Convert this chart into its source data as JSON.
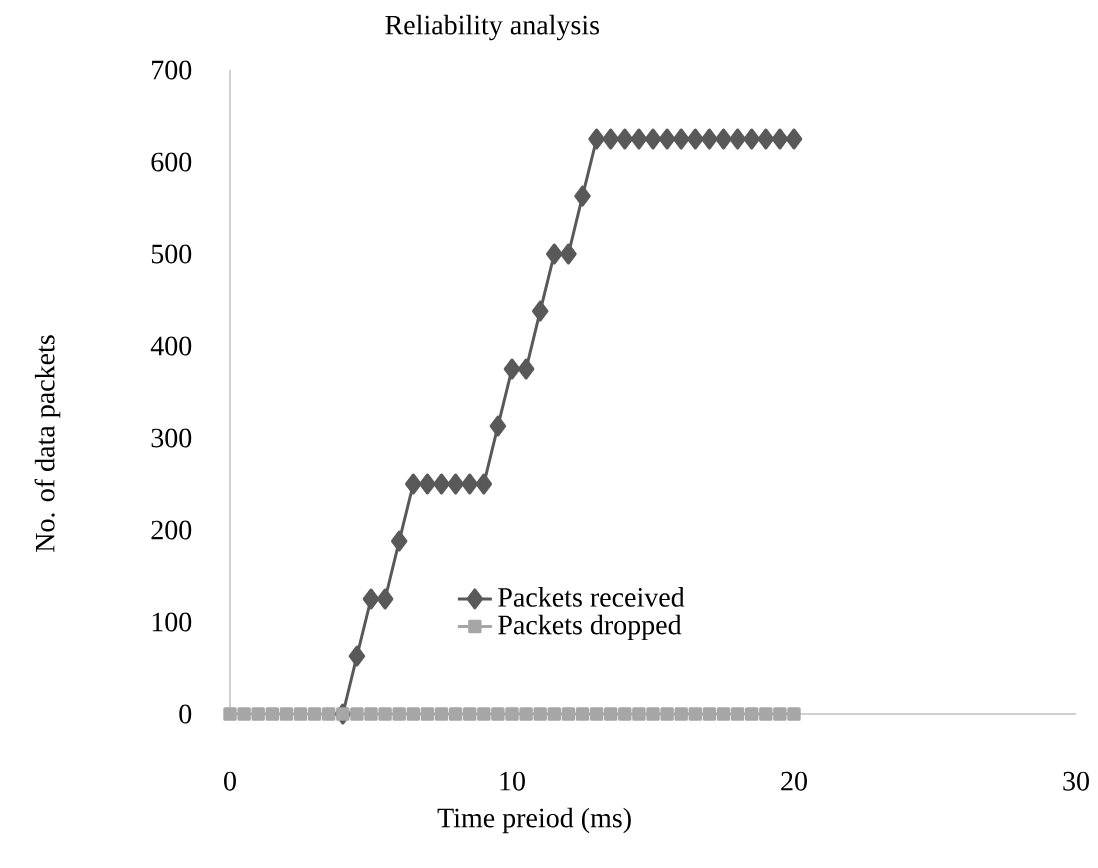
{
  "chart_data": {
    "type": "line",
    "title": "Reliability analysis",
    "xlabel": "Time preiod (ms)",
    "ylabel": "No. of data packets",
    "xlim": [
      0,
      30
    ],
    "xticks": [
      0,
      10,
      20,
      30
    ],
    "ylim": [
      0,
      700
    ],
    "yticks": [
      0,
      100,
      200,
      300,
      400,
      500,
      600,
      700
    ],
    "grid": false,
    "legend": "bottom",
    "series": [
      {
        "name": "Packets received",
        "color": "#595959",
        "marker": "diamond",
        "x": [
          4,
          4.5,
          5,
          5.5,
          6,
          6.5,
          7,
          7.5,
          8,
          8.5,
          9,
          9.5,
          10,
          10.5,
          11,
          11.5,
          12,
          12.5,
          13,
          13.5,
          14,
          14.5,
          15,
          15.5,
          16,
          16.5,
          17,
          17.5,
          18,
          18.5,
          19,
          19.5,
          20
        ],
        "values": [
          0,
          63,
          125,
          125,
          188,
          250,
          250,
          250,
          250,
          250,
          250,
          313,
          375,
          375,
          438,
          500,
          500,
          563,
          625,
          625,
          625,
          625,
          625,
          625,
          625,
          625,
          625,
          625,
          625,
          625,
          625,
          625,
          625
        ]
      },
      {
        "name": "Packets dropped",
        "color": "#a6a6a6",
        "marker": "square",
        "x": [
          0,
          0.5,
          1,
          1.5,
          2,
          2.5,
          3,
          3.5,
          4,
          4.5,
          5,
          5.5,
          6,
          6.5,
          7,
          7.5,
          8,
          8.5,
          9,
          9.5,
          10,
          10.5,
          11,
          11.5,
          12,
          12.5,
          13,
          13.5,
          14,
          14.5,
          15,
          15.5,
          16,
          16.5,
          17,
          17.5,
          18,
          18.5,
          19,
          19.5,
          20
        ],
        "values": [
          0,
          0,
          0,
          0,
          0,
          0,
          0,
          0,
          0,
          0,
          0,
          0,
          0,
          0,
          0,
          0,
          0,
          0,
          0,
          0,
          0,
          0,
          0,
          0,
          0,
          0,
          0,
          0,
          0,
          0,
          0,
          0,
          0,
          0,
          0,
          0,
          0,
          0,
          0,
          0,
          0
        ]
      }
    ]
  }
}
